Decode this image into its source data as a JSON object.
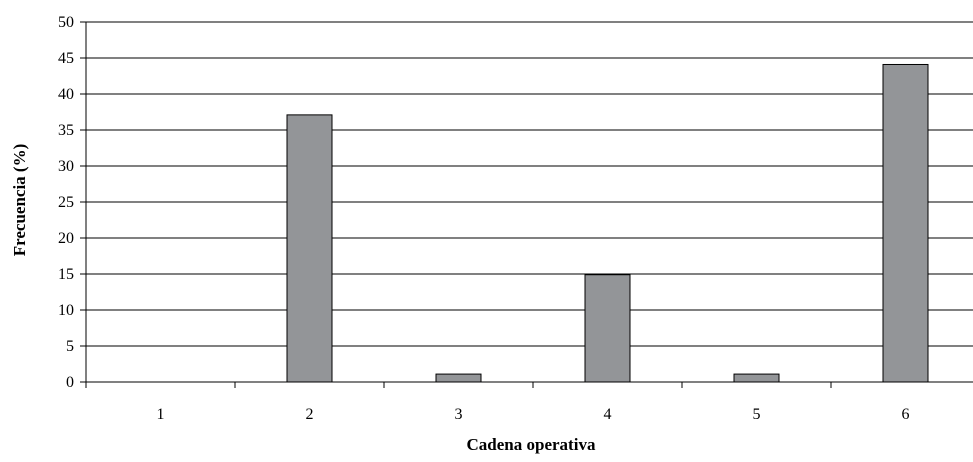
{
  "chart_data": {
    "type": "bar",
    "title": "",
    "xlabel": "Cadena operativa",
    "ylabel": "Frecuencia (%)",
    "categories": [
      "1",
      "2",
      "3",
      "4",
      "5",
      "6"
    ],
    "values": [
      0,
      37.1,
      1.1,
      14.9,
      1.1,
      44.1
    ],
    "ylim": [
      0,
      50
    ],
    "yticks": [
      "0",
      "5",
      "10",
      "15",
      "20",
      "25",
      "30",
      "35",
      "40",
      "45",
      "50"
    ],
    "grid": "horizontal",
    "legend": "none",
    "colors": {
      "bar_fill": "#939598",
      "bar_stroke": "#000000",
      "grid": "#000000",
      "axis": "#000000"
    }
  }
}
